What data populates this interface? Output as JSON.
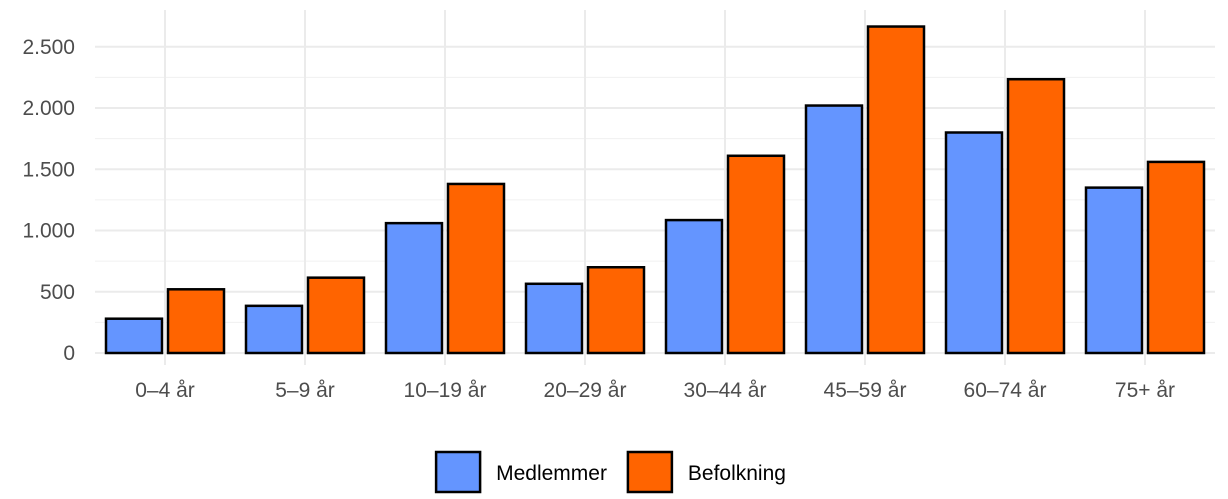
{
  "chart_data": {
    "type": "bar",
    "categories": [
      "0–4 år",
      "5–9 år",
      "10–19 år",
      "20–29 år",
      "30–44 år",
      "45–59 år",
      "60–74 år",
      "75+ år"
    ],
    "series": [
      {
        "name": "Medlemmer",
        "color": "#6495ff",
        "values": [
          280,
          385,
          1060,
          565,
          1085,
          2020,
          1800,
          1350
        ]
      },
      {
        "name": "Befolkning",
        "color": "#ff6400",
        "values": [
          520,
          615,
          1380,
          700,
          1610,
          2665,
          2235,
          1560
        ]
      }
    ],
    "title": "",
    "xlabel": "",
    "ylabel": "",
    "ylim": [
      0,
      2700
    ],
    "yticks": [
      0,
      500,
      1000,
      1500,
      2000,
      2500
    ],
    "ytick_labels": [
      "0",
      "500",
      "1.000",
      "1.500",
      "2.000",
      "2.500"
    ],
    "grid": true,
    "legend_position": "bottom"
  }
}
